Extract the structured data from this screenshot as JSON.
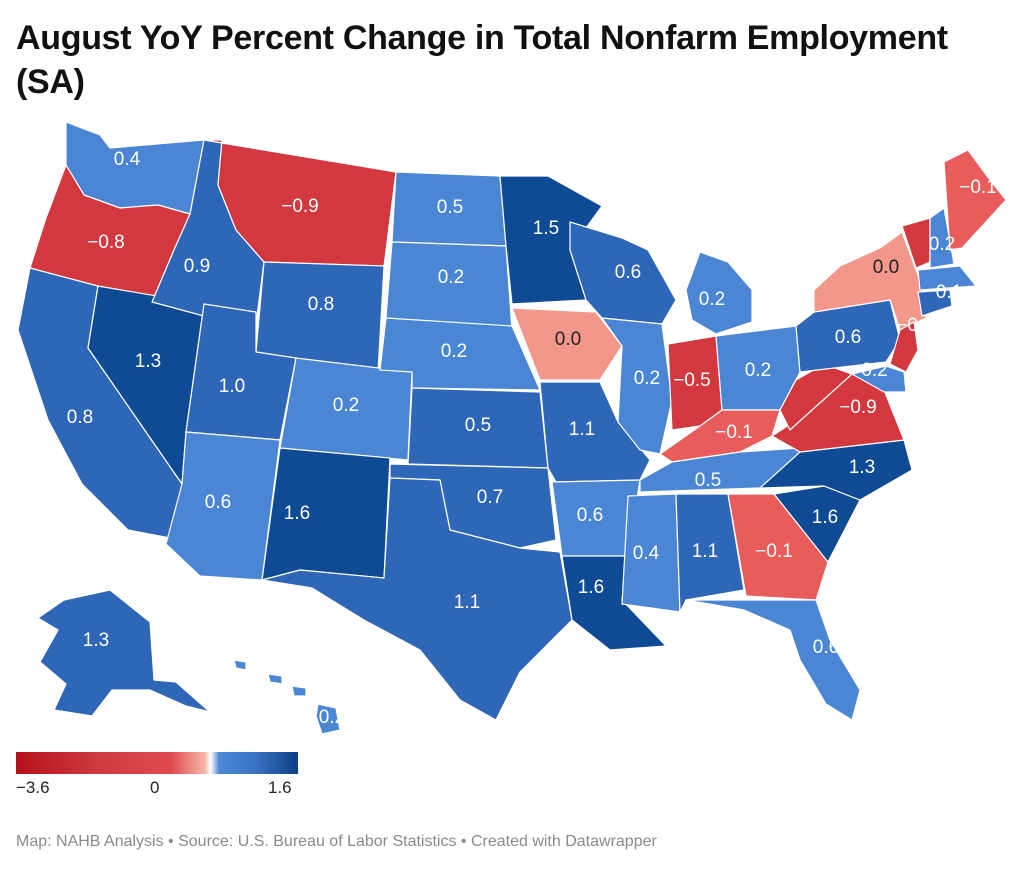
{
  "title": "August YoY Percent Change in Total Nonfarm Employment (SA)",
  "legend": {
    "min_label": "−3.6",
    "mid_label": "0",
    "max_label": "1.6"
  },
  "source": "Map: NAHB Analysis • Source: U.S. Bureau of Labor Statistics • Created with Datawrapper",
  "colors": {
    "neg_strong": "#d2383d",
    "neg_mid": "#e85c5c",
    "zero": "#f2978a",
    "pos_light": "#4a86d4",
    "pos_mid": "#2e66b8",
    "pos_strong": "#0f4a94"
  },
  "states": [
    {
      "code": "WA",
      "value": "0.4"
    },
    {
      "code": "OR",
      "value": "−0.8"
    },
    {
      "code": "CA",
      "value": "0.8"
    },
    {
      "code": "NV",
      "value": "1.3"
    },
    {
      "code": "ID",
      "value": "0.9"
    },
    {
      "code": "MT",
      "value": "−0.9"
    },
    {
      "code": "WY",
      "value": "0.8"
    },
    {
      "code": "UT",
      "value": "1.0"
    },
    {
      "code": "AZ",
      "value": "0.6"
    },
    {
      "code": "CO",
      "value": "0.2"
    },
    {
      "code": "NM",
      "value": "1.6"
    },
    {
      "code": "ND",
      "value": "0.5"
    },
    {
      "code": "SD",
      "value": "0.2"
    },
    {
      "code": "NE",
      "value": "0.2"
    },
    {
      "code": "KS",
      "value": "0.5"
    },
    {
      "code": "OK",
      "value": "0.7"
    },
    {
      "code": "TX",
      "value": "1.1"
    },
    {
      "code": "MN",
      "value": "1.5"
    },
    {
      "code": "IA",
      "value": "0.0"
    },
    {
      "code": "MO",
      "value": "1.1"
    },
    {
      "code": "AR",
      "value": "0.6"
    },
    {
      "code": "LA",
      "value": "1.6"
    },
    {
      "code": "WI",
      "value": "0.6"
    },
    {
      "code": "IL",
      "value": "0.2"
    },
    {
      "code": "MI",
      "value": "0.2"
    },
    {
      "code": "IN",
      "value": "−0.5"
    },
    {
      "code": "OH",
      "value": "0.2"
    },
    {
      "code": "KY",
      "value": "−0.1"
    },
    {
      "code": "TN",
      "value": "0.5"
    },
    {
      "code": "MS",
      "value": "0.4"
    },
    {
      "code": "AL",
      "value": "1.1"
    },
    {
      "code": "GA",
      "value": "−0.1"
    },
    {
      "code": "FL",
      "value": "0.6"
    },
    {
      "code": "SC",
      "value": "1.6"
    },
    {
      "code": "NC",
      "value": "1.3"
    },
    {
      "code": "VA",
      "value": "−0.9"
    },
    {
      "code": "WV",
      "value": "−0.2"
    },
    {
      "code": "PA",
      "value": "0.6"
    },
    {
      "code": "NY",
      "value": "0.0"
    },
    {
      "code": "NJ",
      "value": "−0.2"
    },
    {
      "code": "VT",
      "value": "0.2"
    },
    {
      "code": "NH",
      "value": "0.2"
    },
    {
      "code": "CT",
      "value": "0.1"
    },
    {
      "code": "ME",
      "value": "−0.1"
    },
    {
      "code": "AK",
      "value": "1.3"
    },
    {
      "code": "HI",
      "value": "0.2"
    }
  ]
}
